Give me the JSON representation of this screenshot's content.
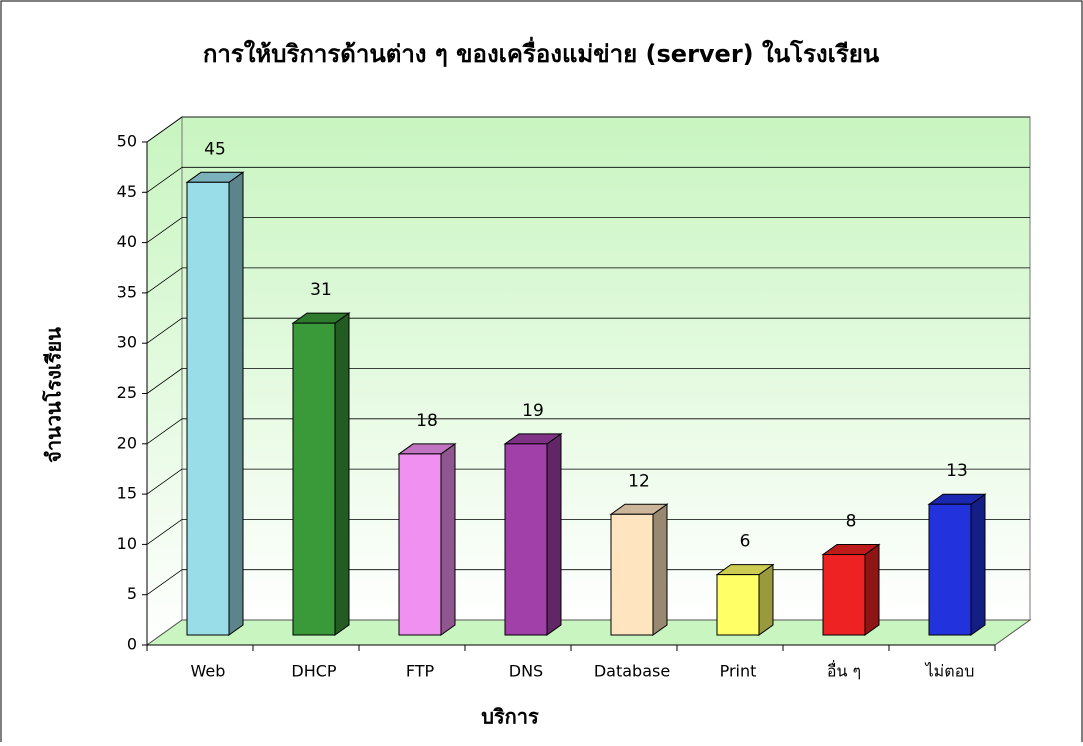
{
  "chart_data": {
    "type": "bar3d",
    "title": "การให้บริการด้านต่าง ๆ ของเครื่องแม่ข่าย (server) ในโรงเรียน",
    "x_label": "บริการ",
    "y_label": "จำนวนโรงเรียน",
    "categories": [
      "Web",
      "DHCP",
      "FTP",
      "DNS",
      "Database",
      "Print",
      "อื่น ๆ",
      "ไม่ตอบ"
    ],
    "values": [
      45,
      31,
      18,
      19,
      12,
      6,
      8,
      13
    ],
    "colors": [
      "#99dde8",
      "#3a9a3a",
      "#f090f0",
      "#a040a8",
      "#ffe4c0",
      "#ffff66",
      "#ee2222",
      "#2233dd"
    ],
    "ylim": [
      0,
      50
    ],
    "yticks": [
      0,
      5,
      10,
      15,
      20,
      25,
      30,
      35,
      40,
      45,
      50
    ],
    "grid": true
  }
}
